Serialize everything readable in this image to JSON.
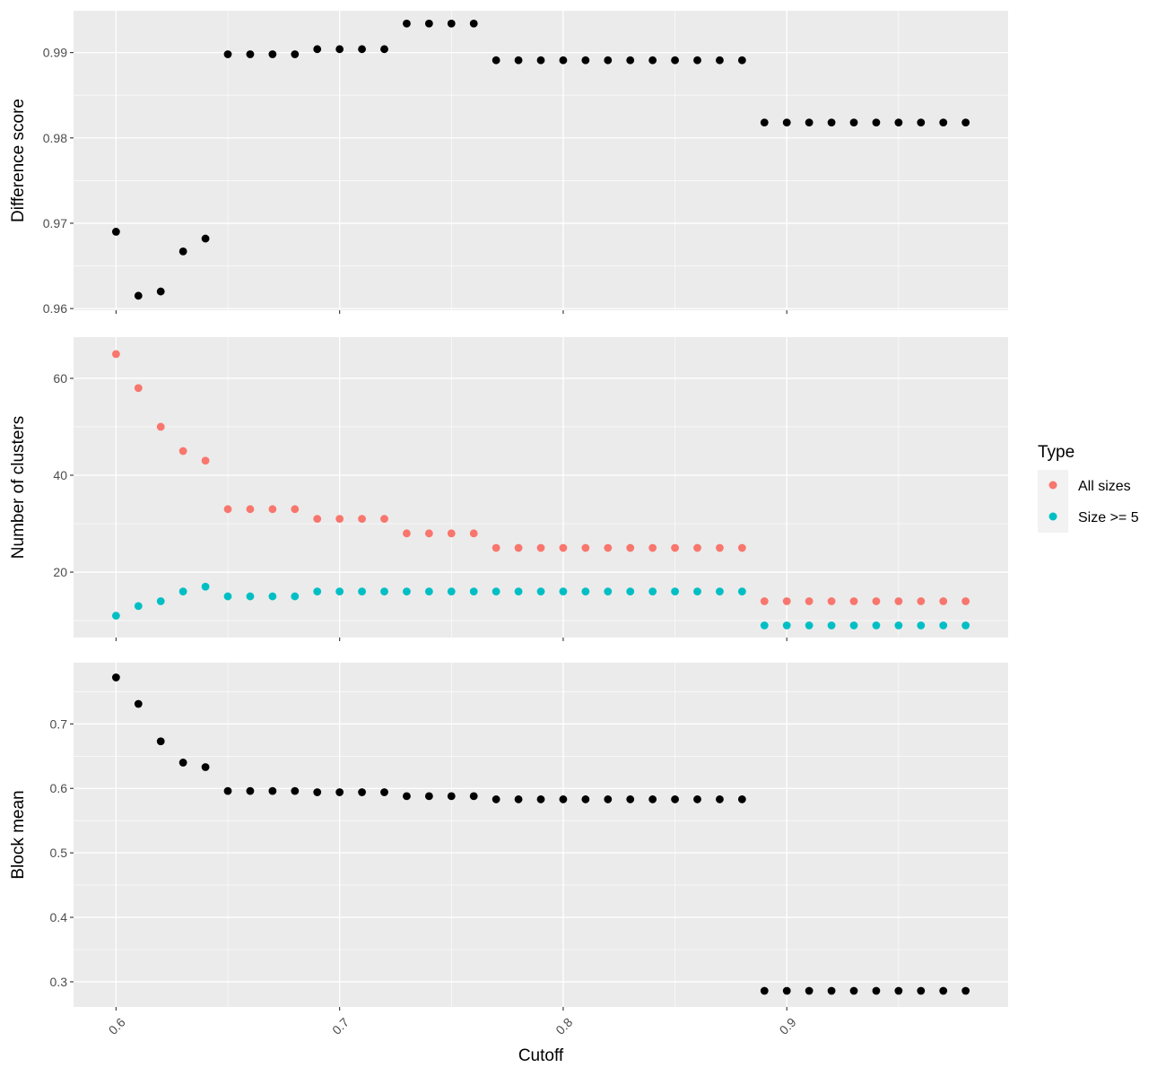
{
  "chart_data": {
    "type": "scatter",
    "x_label": "Cutoff",
    "x_range": [
      0.581,
      0.999
    ],
    "x_ticks": [
      0.6,
      0.7,
      0.8,
      0.9
    ],
    "x_tick_labels": [
      "0.6",
      "0.7",
      "0.8",
      "0.9"
    ],
    "x": [
      0.6,
      0.61,
      0.62,
      0.63,
      0.64,
      0.65,
      0.66,
      0.67,
      0.68,
      0.69,
      0.7,
      0.71,
      0.72,
      0.73,
      0.74,
      0.75,
      0.76,
      0.77,
      0.78,
      0.79,
      0.8,
      0.81,
      0.82,
      0.83,
      0.84,
      0.85,
      0.86,
      0.87,
      0.88,
      0.89,
      0.9,
      0.91,
      0.92,
      0.93,
      0.94,
      0.95,
      0.96,
      0.97,
      0.98
    ],
    "colors": {
      "panel_bg": "#ebebeb",
      "grid": "#ffffff",
      "point_single": "#000000",
      "all_sizes": "#F8766D",
      "size_ge_5": "#00BFC4"
    },
    "legend": {
      "title": "Type",
      "entries": [
        {
          "label": "All sizes",
          "color": "#F8766D"
        },
        {
          "label": "Size >= 5",
          "color": "#00BFC4"
        }
      ]
    },
    "panels": [
      {
        "name": "difference-score",
        "ylabel": "Difference score",
        "ylim": [
          0.9598,
          0.9949
        ],
        "y_ticks": [
          0.96,
          0.97,
          0.98,
          0.99
        ],
        "y_tick_labels": [
          "0.96",
          "0.97",
          "0.98",
          "0.99"
        ],
        "series": [
          {
            "name": "Difference score",
            "color": "#000000",
            "values": [
              0.969,
              0.9615,
              0.962,
              0.9667,
              0.9682,
              0.9898,
              0.9898,
              0.9898,
              0.9898,
              0.9904,
              0.9904,
              0.9904,
              0.9904,
              0.9934,
              0.9934,
              0.9934,
              0.9934,
              0.9891,
              0.9891,
              0.9891,
              0.9891,
              0.9891,
              0.9891,
              0.9891,
              0.9891,
              0.9891,
              0.9891,
              0.9891,
              0.9891,
              0.9818,
              0.9818,
              0.9818,
              0.9818,
              0.9818,
              0.9818,
              0.9818,
              0.9818,
              0.9818,
              0.9818
            ]
          }
        ]
      },
      {
        "name": "number-of-clusters",
        "ylabel": "Number of clusters",
        "ylim": [
          6.5,
          68.5
        ],
        "y_ticks": [
          20,
          40,
          60
        ],
        "y_tick_labels": [
          "20",
          "40",
          "60"
        ],
        "series": [
          {
            "name": "All sizes",
            "color": "#F8766D",
            "values": [
              65,
              58,
              50,
              45,
              43,
              33,
              33,
              33,
              33,
              31,
              31,
              31,
              31,
              28,
              28,
              28,
              28,
              25,
              25,
              25,
              25,
              25,
              25,
              25,
              25,
              25,
              25,
              25,
              25,
              14,
              14,
              14,
              14,
              14,
              14,
              14,
              14,
              14,
              14
            ]
          },
          {
            "name": "Size >= 5",
            "color": "#00BFC4",
            "values": [
              11,
              13,
              14,
              16,
              17,
              15,
              15,
              15,
              15,
              16,
              16,
              16,
              16,
              16,
              16,
              16,
              16,
              16,
              16,
              16,
              16,
              16,
              16,
              16,
              16,
              16,
              16,
              16,
              16,
              9,
              9,
              9,
              9,
              9,
              9,
              9,
              9,
              9,
              9
            ]
          }
        ]
      },
      {
        "name": "block-mean",
        "ylabel": "Block mean",
        "ylim": [
          0.261,
          0.795
        ],
        "y_ticks": [
          0.3,
          0.4,
          0.5,
          0.6,
          0.7
        ],
        "y_tick_labels": [
          "0.3",
          "0.4",
          "0.5",
          "0.6",
          "0.7"
        ],
        "series": [
          {
            "name": "Block mean",
            "color": "#000000",
            "values": [
              0.772,
              0.731,
              0.673,
              0.64,
              0.633,
              0.596,
              0.596,
              0.596,
              0.596,
              0.594,
              0.594,
              0.594,
              0.594,
              0.588,
              0.588,
              0.588,
              0.588,
              0.583,
              0.583,
              0.583,
              0.583,
              0.583,
              0.583,
              0.583,
              0.583,
              0.583,
              0.583,
              0.583,
              0.583,
              0.286,
              0.286,
              0.286,
              0.286,
              0.286,
              0.286,
              0.286,
              0.286,
              0.286,
              0.286
            ]
          }
        ]
      }
    ]
  }
}
